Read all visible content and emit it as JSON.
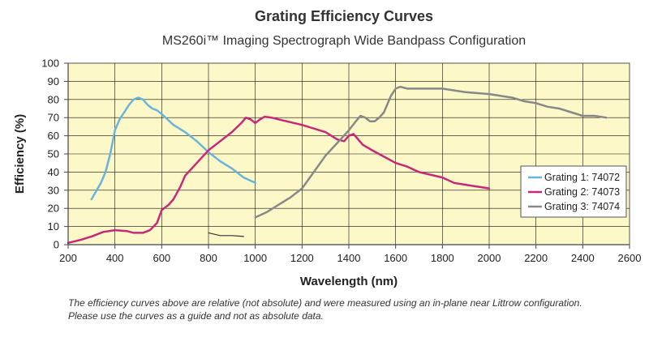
{
  "chart_data": {
    "type": "line",
    "title": "Grating Efficiency Curves",
    "subtitle": "MS260i™ Imaging Spectrograph Wide Bandpass Configuration",
    "xlabel": "Wavelength (nm)",
    "ylabel": "Efficiency (%)",
    "xlim": [
      200,
      2600
    ],
    "ylim": [
      0,
      100
    ],
    "x_ticks": [
      200,
      400,
      600,
      800,
      1000,
      1200,
      1400,
      1600,
      1800,
      2000,
      2200,
      2400,
      2600
    ],
    "y_ticks": [
      0,
      10,
      20,
      30,
      40,
      50,
      60,
      70,
      80,
      90,
      100
    ],
    "grid": true,
    "legend_position": "right",
    "background_color": "#fdf8c8",
    "series": [
      {
        "name": "Grating 1: 74072",
        "color": "#6ab4dc",
        "points": [
          [
            300,
            25
          ],
          [
            340,
            34
          ],
          [
            360,
            40
          ],
          [
            380,
            50
          ],
          [
            400,
            63
          ],
          [
            420,
            69
          ],
          [
            440,
            73
          ],
          [
            460,
            77
          ],
          [
            480,
            80
          ],
          [
            500,
            81
          ],
          [
            520,
            80
          ],
          [
            540,
            77
          ],
          [
            560,
            75
          ],
          [
            580,
            74
          ],
          [
            600,
            72
          ],
          [
            650,
            66
          ],
          [
            700,
            62
          ],
          [
            750,
            57
          ],
          [
            800,
            51
          ],
          [
            850,
            46
          ],
          [
            900,
            42
          ],
          [
            950,
            37
          ],
          [
            1000,
            34
          ]
        ]
      },
      {
        "name": "Grating 2: 74073",
        "color": "#c8287a",
        "points": [
          [
            200,
            1
          ],
          [
            250,
            2.5
          ],
          [
            300,
            4.5
          ],
          [
            350,
            7
          ],
          [
            400,
            8
          ],
          [
            450,
            7.5
          ],
          [
            480,
            6.5
          ],
          [
            520,
            6.5
          ],
          [
            550,
            8
          ],
          [
            580,
            12
          ],
          [
            600,
            19
          ],
          [
            630,
            22
          ],
          [
            650,
            25
          ],
          [
            680,
            32
          ],
          [
            700,
            38
          ],
          [
            750,
            45
          ],
          [
            800,
            52
          ],
          [
            850,
            57
          ],
          [
            900,
            62
          ],
          [
            940,
            67
          ],
          [
            960,
            70
          ],
          [
            980,
            69
          ],
          [
            1000,
            67
          ],
          [
            1020,
            69
          ],
          [
            1040,
            70.5
          ],
          [
            1070,
            70
          ],
          [
            1100,
            69
          ],
          [
            1200,
            66
          ],
          [
            1300,
            62
          ],
          [
            1350,
            58
          ],
          [
            1380,
            57
          ],
          [
            1400,
            60
          ],
          [
            1420,
            61
          ],
          [
            1440,
            58
          ],
          [
            1460,
            55
          ],
          [
            1500,
            52
          ],
          [
            1600,
            45
          ],
          [
            1650,
            43
          ],
          [
            1700,
            40
          ],
          [
            1800,
            37
          ],
          [
            1850,
            34
          ],
          [
            1900,
            33
          ],
          [
            2000,
            31
          ]
        ]
      },
      {
        "name": "Grating 3: 74074",
        "color": "#888888",
        "points": [
          [
            1000,
            15
          ],
          [
            1050,
            18
          ],
          [
            1100,
            22
          ],
          [
            1150,
            26
          ],
          [
            1200,
            31
          ],
          [
            1250,
            40
          ],
          [
            1300,
            49
          ],
          [
            1350,
            56
          ],
          [
            1400,
            63
          ],
          [
            1430,
            68
          ],
          [
            1450,
            71
          ],
          [
            1470,
            70
          ],
          [
            1490,
            68
          ],
          [
            1510,
            68
          ],
          [
            1530,
            70
          ],
          [
            1550,
            73
          ],
          [
            1580,
            82
          ],
          [
            1600,
            86
          ],
          [
            1620,
            87
          ],
          [
            1650,
            86
          ],
          [
            1700,
            86
          ],
          [
            1800,
            86
          ],
          [
            1850,
            85
          ],
          [
            1900,
            84
          ],
          [
            2000,
            83
          ],
          [
            2100,
            81
          ],
          [
            2150,
            79
          ],
          [
            2200,
            78
          ],
          [
            2250,
            76
          ],
          [
            2300,
            75
          ],
          [
            2350,
            73
          ],
          [
            2400,
            71
          ],
          [
            2450,
            71
          ],
          [
            2500,
            70
          ]
        ]
      },
      {
        "name": "",
        "color": "#333333",
        "points": [
          [
            800,
            6.5
          ],
          [
            850,
            5
          ],
          [
            900,
            5
          ],
          [
            950,
            4.5
          ]
        ]
      }
    ]
  },
  "footnote": {
    "line1": "The efficiency curves above are relative (not absolute) and were measured using an in-plane near Littrow configuration.",
    "line2": "Please use the curves as a guide and not as absolute data."
  }
}
